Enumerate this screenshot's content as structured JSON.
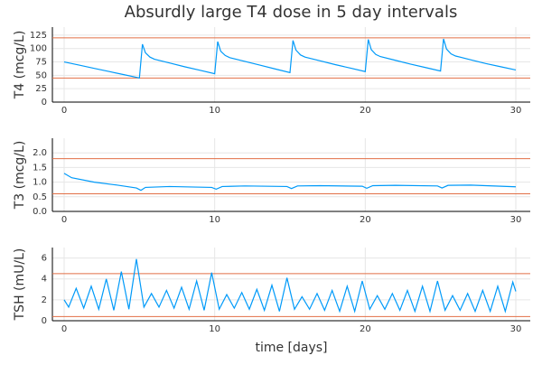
{
  "chart_data": [
    {
      "type": "line",
      "title": "Absurdly large T4 dose in 5 day intervals",
      "ylabel": "T4 (mcg/L)",
      "xlim": [
        -0.78,
        30.96
      ],
      "xticks": [
        0,
        10,
        20,
        30
      ],
      "ylim": [
        0,
        140
      ],
      "yticks": [
        0,
        25,
        50,
        75,
        100,
        125
      ],
      "grid": true,
      "hlines": [
        120,
        45
      ],
      "hline_color": "#e26f46",
      "series": [
        {
          "color": "#009af9",
          "x": [
            0,
            1,
            2,
            3,
            4,
            5,
            5.2,
            5.4,
            5.7,
            6,
            7,
            8,
            9,
            10,
            10.2,
            10.4,
            10.7,
            11,
            12,
            13,
            14,
            15,
            15.2,
            15.4,
            15.7,
            16,
            17,
            18,
            19,
            20,
            20.2,
            20.4,
            20.7,
            21,
            22,
            23,
            24,
            25,
            25.2,
            25.4,
            25.7,
            26,
            27,
            28,
            29,
            30
          ],
          "values": [
            75,
            69,
            63,
            57,
            51,
            45,
            108,
            92,
            84,
            80,
            73,
            66,
            59.5,
            53,
            113,
            95,
            87,
            83,
            76,
            69,
            62,
            55,
            115,
            97,
            88,
            84,
            77,
            70,
            63.5,
            57,
            117,
            98,
            89,
            85,
            78,
            71,
            64.5,
            58,
            118,
            99,
            90,
            86,
            79,
            72,
            66,
            60
          ]
        }
      ]
    },
    {
      "type": "line",
      "ylabel": "T3 (mcg/L)",
      "xlim": [
        -0.78,
        30.96
      ],
      "xticks": [
        0,
        10,
        20,
        30
      ],
      "ylim": [
        0,
        2.5
      ],
      "yticks": [
        {
          "value": 0,
          "label": "0.0"
        },
        {
          "value": 0.5,
          "label": "0.5"
        },
        {
          "value": 1,
          "label": "1.0"
        },
        {
          "value": 1.5,
          "label": "1.5"
        },
        {
          "value": 2,
          "label": "2.0"
        }
      ],
      "grid": true,
      "hlines": [
        1.8,
        0.6
      ],
      "hline_color": "#e26f46",
      "series": [
        {
          "color": "#009af9",
          "x": [
            0,
            0.5,
            2,
            3.5,
            4.8,
            5.1,
            5.4,
            7,
            9.8,
            10.1,
            10.5,
            12,
            14.8,
            15.1,
            15.5,
            17,
            19.8,
            20.1,
            20.5,
            22,
            24.8,
            25.1,
            25.5,
            27,
            30
          ],
          "values": [
            1.3,
            1.15,
            1.0,
            0.9,
            0.8,
            0.72,
            0.82,
            0.85,
            0.82,
            0.76,
            0.85,
            0.87,
            0.85,
            0.78,
            0.87,
            0.88,
            0.86,
            0.79,
            0.88,
            0.89,
            0.87,
            0.8,
            0.89,
            0.9,
            0.84
          ]
        }
      ]
    },
    {
      "type": "line",
      "ylabel": "TSH (mU/L)",
      "xlabel": "time [days]",
      "xlim": [
        -0.78,
        30.96
      ],
      "xticks": [
        0,
        10,
        20,
        30
      ],
      "ylim": [
        0,
        7
      ],
      "yticks": [
        0,
        2,
        4,
        6
      ],
      "grid": true,
      "hlines": [
        4.5,
        0.4
      ],
      "hline_color": "#e26f46",
      "series": [
        {
          "color": "#009af9",
          "x": [
            0,
            0.3,
            0.8,
            1.3,
            1.8,
            2.3,
            2.8,
            3.3,
            3.8,
            4.3,
            4.8,
            5.3,
            5.8,
            6.3,
            6.8,
            7.3,
            7.8,
            8.3,
            8.8,
            9.3,
            9.8,
            10.3,
            10.8,
            11.3,
            11.8,
            12.3,
            12.8,
            13.3,
            13.8,
            14.3,
            14.8,
            15.3,
            15.8,
            16.3,
            16.8,
            17.3,
            17.8,
            18.3,
            18.8,
            19.3,
            19.8,
            20.3,
            20.8,
            21.3,
            21.8,
            22.3,
            22.8,
            23.3,
            23.8,
            24.3,
            24.8,
            25.3,
            25.8,
            26.3,
            26.8,
            27.3,
            27.8,
            28.3,
            28.8,
            29.3,
            29.8,
            30
          ],
          "values": [
            2.0,
            1.3,
            3.1,
            1.2,
            3.3,
            1.1,
            4.0,
            1.0,
            4.7,
            1.1,
            5.9,
            1.3,
            2.6,
            1.3,
            2.9,
            1.2,
            3.2,
            1.1,
            3.8,
            1.0,
            4.6,
            1.1,
            2.5,
            1.2,
            2.7,
            1.1,
            3.0,
            1.0,
            3.4,
            0.9,
            4.1,
            1.1,
            2.3,
            1.1,
            2.6,
            1.0,
            2.9,
            0.9,
            3.3,
            0.9,
            3.8,
            1.1,
            2.4,
            1.1,
            2.6,
            1.0,
            2.9,
            0.9,
            3.3,
            0.9,
            3.8,
            1.0,
            2.4,
            1.0,
            2.6,
            0.9,
            2.9,
            0.9,
            3.3,
            0.9,
            3.7,
            2.8
          ]
        }
      ]
    }
  ]
}
